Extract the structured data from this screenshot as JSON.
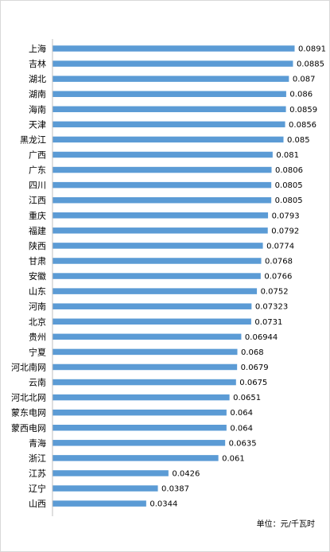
{
  "chart_data": {
    "type": "bar",
    "orientation": "horizontal",
    "categories": [
      "上海",
      "吉林",
      "湖北",
      "湖南",
      "海南",
      "天津",
      "黑龙江",
      "广西",
      "广东",
      "四川",
      "江西",
      "重庆",
      "福建",
      "陕西",
      "甘肃",
      "安徽",
      "山东",
      "河南",
      "北京",
      "贵州",
      "宁夏",
      "河北南网",
      "云南",
      "河北北网",
      "蒙东电网",
      "蒙西电网",
      "青海",
      "浙江",
      "江苏",
      "辽宁",
      "山西"
    ],
    "values": [
      0.0891,
      0.0885,
      0.087,
      0.086,
      0.0859,
      0.0856,
      0.085,
      0.081,
      0.0806,
      0.0805,
      0.0805,
      0.0793,
      0.0792,
      0.0774,
      0.0768,
      0.0766,
      0.0752,
      0.07323,
      0.0731,
      0.06944,
      0.068,
      0.0679,
      0.0675,
      0.0651,
      0.064,
      0.064,
      0.0635,
      0.061,
      0.0426,
      0.0387,
      0.0344
    ],
    "labels": [
      "0.0891",
      "0.0885",
      "0.087",
      "0.086",
      "0.0859",
      "0.0856",
      "0.085",
      "0.081",
      "0.0806",
      "0.0805",
      "0.0805",
      "0.0793",
      "0.0792",
      "0.0774",
      "0.0768",
      "0.0766",
      "0.0752",
      "0.07323",
      "0.0731",
      "0.06944",
      "0.068",
      "0.0679",
      "0.0675",
      "0.0651",
      "0.064",
      "0.064",
      "0.0635",
      "0.061",
      "0.0426",
      "0.0387",
      "0.0344"
    ],
    "xlim": [
      0,
      0.0891
    ],
    "grid": false,
    "legend": "none",
    "bar_color": "#5b9bd5",
    "axis_color": "#bfbfbf"
  },
  "unit_label": "单位：元/千瓦时"
}
